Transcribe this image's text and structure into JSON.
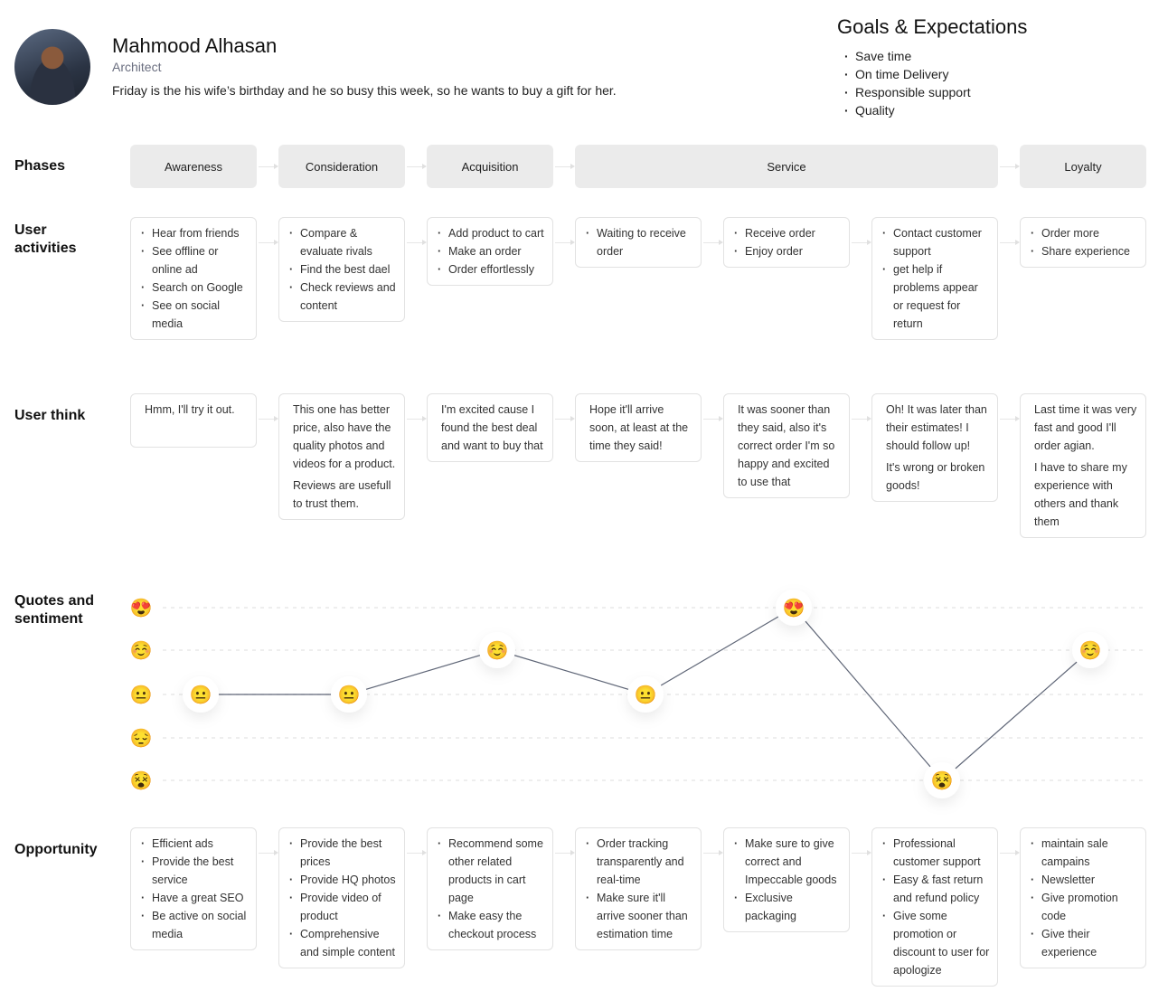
{
  "persona": {
    "name": "Mahmood Alhasan",
    "role": "Architect",
    "description": "Friday is the his wife’s birthday and he so busy this week, so he wants to buy a gift for her."
  },
  "goals": {
    "title": "Goals & Expectations",
    "items": [
      "Save time",
      "On time Delivery",
      "Responsible support",
      "Quality"
    ]
  },
  "row_labels": {
    "phases": "Phases",
    "activities": "User activities",
    "think": "User think",
    "sentiment": "Quotes and sentiment",
    "opportunity": "Opportunity"
  },
  "phases": [
    {
      "label": "Awareness",
      "span": 1
    },
    {
      "label": "Consideration",
      "span": 1
    },
    {
      "label": "Acquisition",
      "span": 1
    },
    {
      "label": "Service",
      "span": 3
    },
    {
      "label": "Loyalty",
      "span": 1
    }
  ],
  "activities": [
    [
      "Hear from friends",
      "See offline or online ad",
      "Search on Google",
      "See on social media"
    ],
    [
      "Compare & evaluate rivals",
      "Find the best dael",
      "Check reviews and content"
    ],
    [
      "Add product to cart",
      "Make an order",
      "Order effortlessly"
    ],
    [
      "Waiting to receive order"
    ],
    [
      "Receive order",
      "Enjoy order"
    ],
    [
      "Contact customer support",
      "get help if problems appear or request for return"
    ],
    [
      "Order more",
      "Share experience"
    ]
  ],
  "think": [
    [
      "Hmm, I'll try it out."
    ],
    [
      "This one has better price, also have the quality photos and videos for a product.",
      "Reviews are usefull to trust them."
    ],
    [
      "I'm excited cause I found the best deal and want to buy that"
    ],
    [
      "Hope it'll arrive soon, at least at the time they said!"
    ],
    [
      "It was sooner than they said, also it's correct order I'm so happy and excited to use that"
    ],
    [
      "Oh! It was later than their estimates! I should follow up!",
      "It's wrong or broken goods!"
    ],
    [
      "Last time it was very fast and good I'll order agian.",
      "I have to share my experience with others and thank them"
    ]
  ],
  "sentiment": {
    "scale": [
      {
        "level": 4,
        "emoji": "😍",
        "icon": "heart-eyes-face-icon"
      },
      {
        "level": 3,
        "emoji": "☺️",
        "icon": "smiling-face-icon"
      },
      {
        "level": 2,
        "emoji": "😐",
        "icon": "neutral-face-icon"
      },
      {
        "level": 1,
        "emoji": "😔",
        "icon": "pensive-face-icon"
      },
      {
        "level": 0,
        "emoji": "😵",
        "icon": "dizzy-face-icon"
      }
    ],
    "values": [
      2,
      2,
      3,
      2,
      4,
      0,
      3
    ],
    "line_color": "#5f6677"
  },
  "opportunity": [
    [
      "Efficient ads",
      "Provide the best service",
      "Have a great SEO",
      "Be active on social media"
    ],
    [
      "Provide the best prices",
      "Provide HQ photos",
      "Provide video of product",
      "Comprehensive and simple content"
    ],
    [
      "Recommend some other related products in cart page",
      "Make easy the checkout process"
    ],
    [
      "Order tracking transparently and real-time",
      "Make sure it'll arrive sooner than estimation time"
    ],
    [
      "Make sure to give correct and Impeccable goods",
      "Exclusive packaging"
    ],
    [
      "Professional customer support",
      "Easy & fast return and refund policy",
      "Give some promotion or discount to user for apologize"
    ],
    [
      "maintain sale campains",
      "Newsletter",
      "Give promotion code",
      "Give their experience"
    ]
  ]
}
